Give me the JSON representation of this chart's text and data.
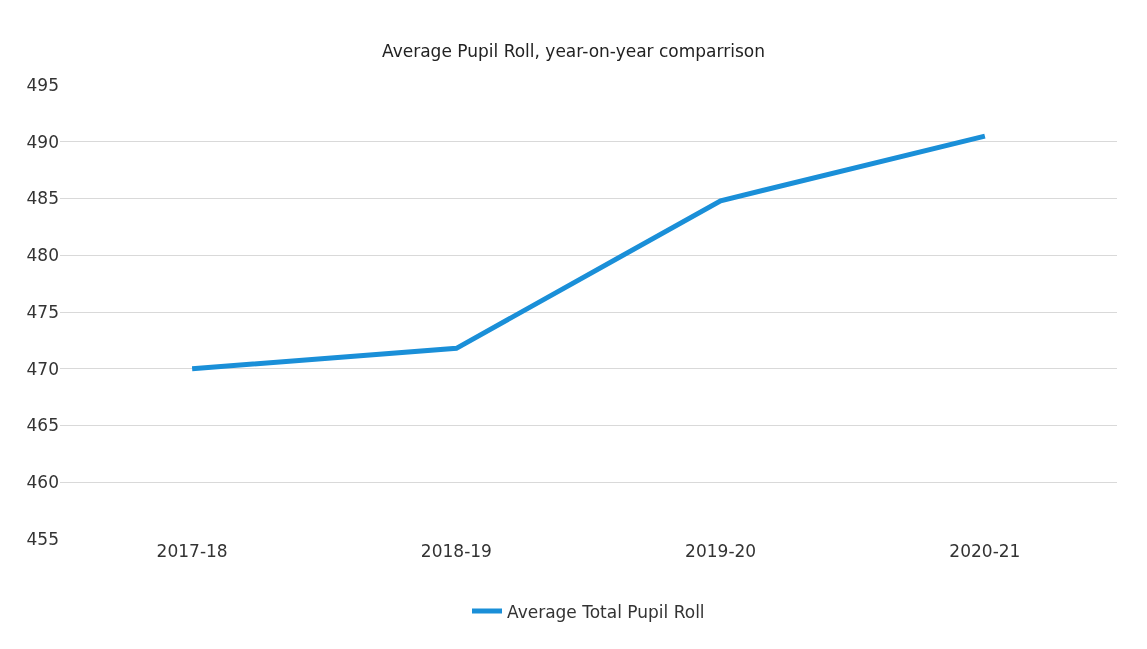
{
  "chart_data": {
    "type": "line",
    "title": "Average Pupil Roll, year-on-year comparrison",
    "categories": [
      "2017-18",
      "2018-19",
      "2019-20",
      "2020-21"
    ],
    "series": [
      {
        "name": "Average Total Pupil Roll",
        "color": "#1a8fd8",
        "values": [
          470.0,
          471.8,
          484.8,
          490.5
        ]
      }
    ],
    "ylim": [
      455,
      495
    ],
    "yticks": [
      455,
      460,
      465,
      470,
      475,
      480,
      485,
      490,
      495
    ],
    "grid": "y",
    "legend": "bottom",
    "marker": "none",
    "line_style": "solid"
  }
}
